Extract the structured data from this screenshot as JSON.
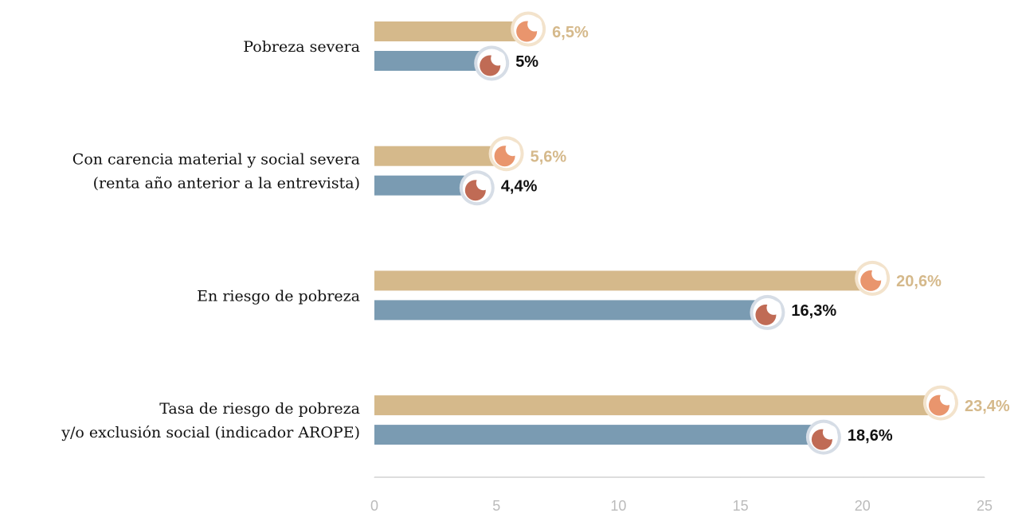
{
  "chart_data": {
    "type": "bar",
    "orientation": "horizontal",
    "categories": [
      [
        "Pobreza severa"
      ],
      [
        "Con carencia material y social severa",
        "(renta año anterior a la entrevista)"
      ],
      [
        "En riesgo de pobreza"
      ],
      [
        "Tasa de riesgo de pobreza",
        "y/o exclusión social (indicador AROPE)"
      ]
    ],
    "series": [
      {
        "color": "#d5b98b",
        "label_color": "#d5b98b",
        "values": [
          6.5,
          5.6,
          20.6,
          23.4
        ],
        "value_labels": [
          "6,5%",
          "5,6%",
          "20,6%",
          "23,4%"
        ]
      },
      {
        "color": "#7a9bb2",
        "label_color": "#111111",
        "values": [
          5,
          4.4,
          16.3,
          18.6
        ],
        "value_labels": [
          "5%",
          "4,4%",
          "16,3%",
          "18,6%"
        ]
      }
    ],
    "xlim": [
      0,
      25
    ],
    "xticks": [
      0,
      5,
      10,
      15,
      20,
      25
    ],
    "grid": false
  }
}
